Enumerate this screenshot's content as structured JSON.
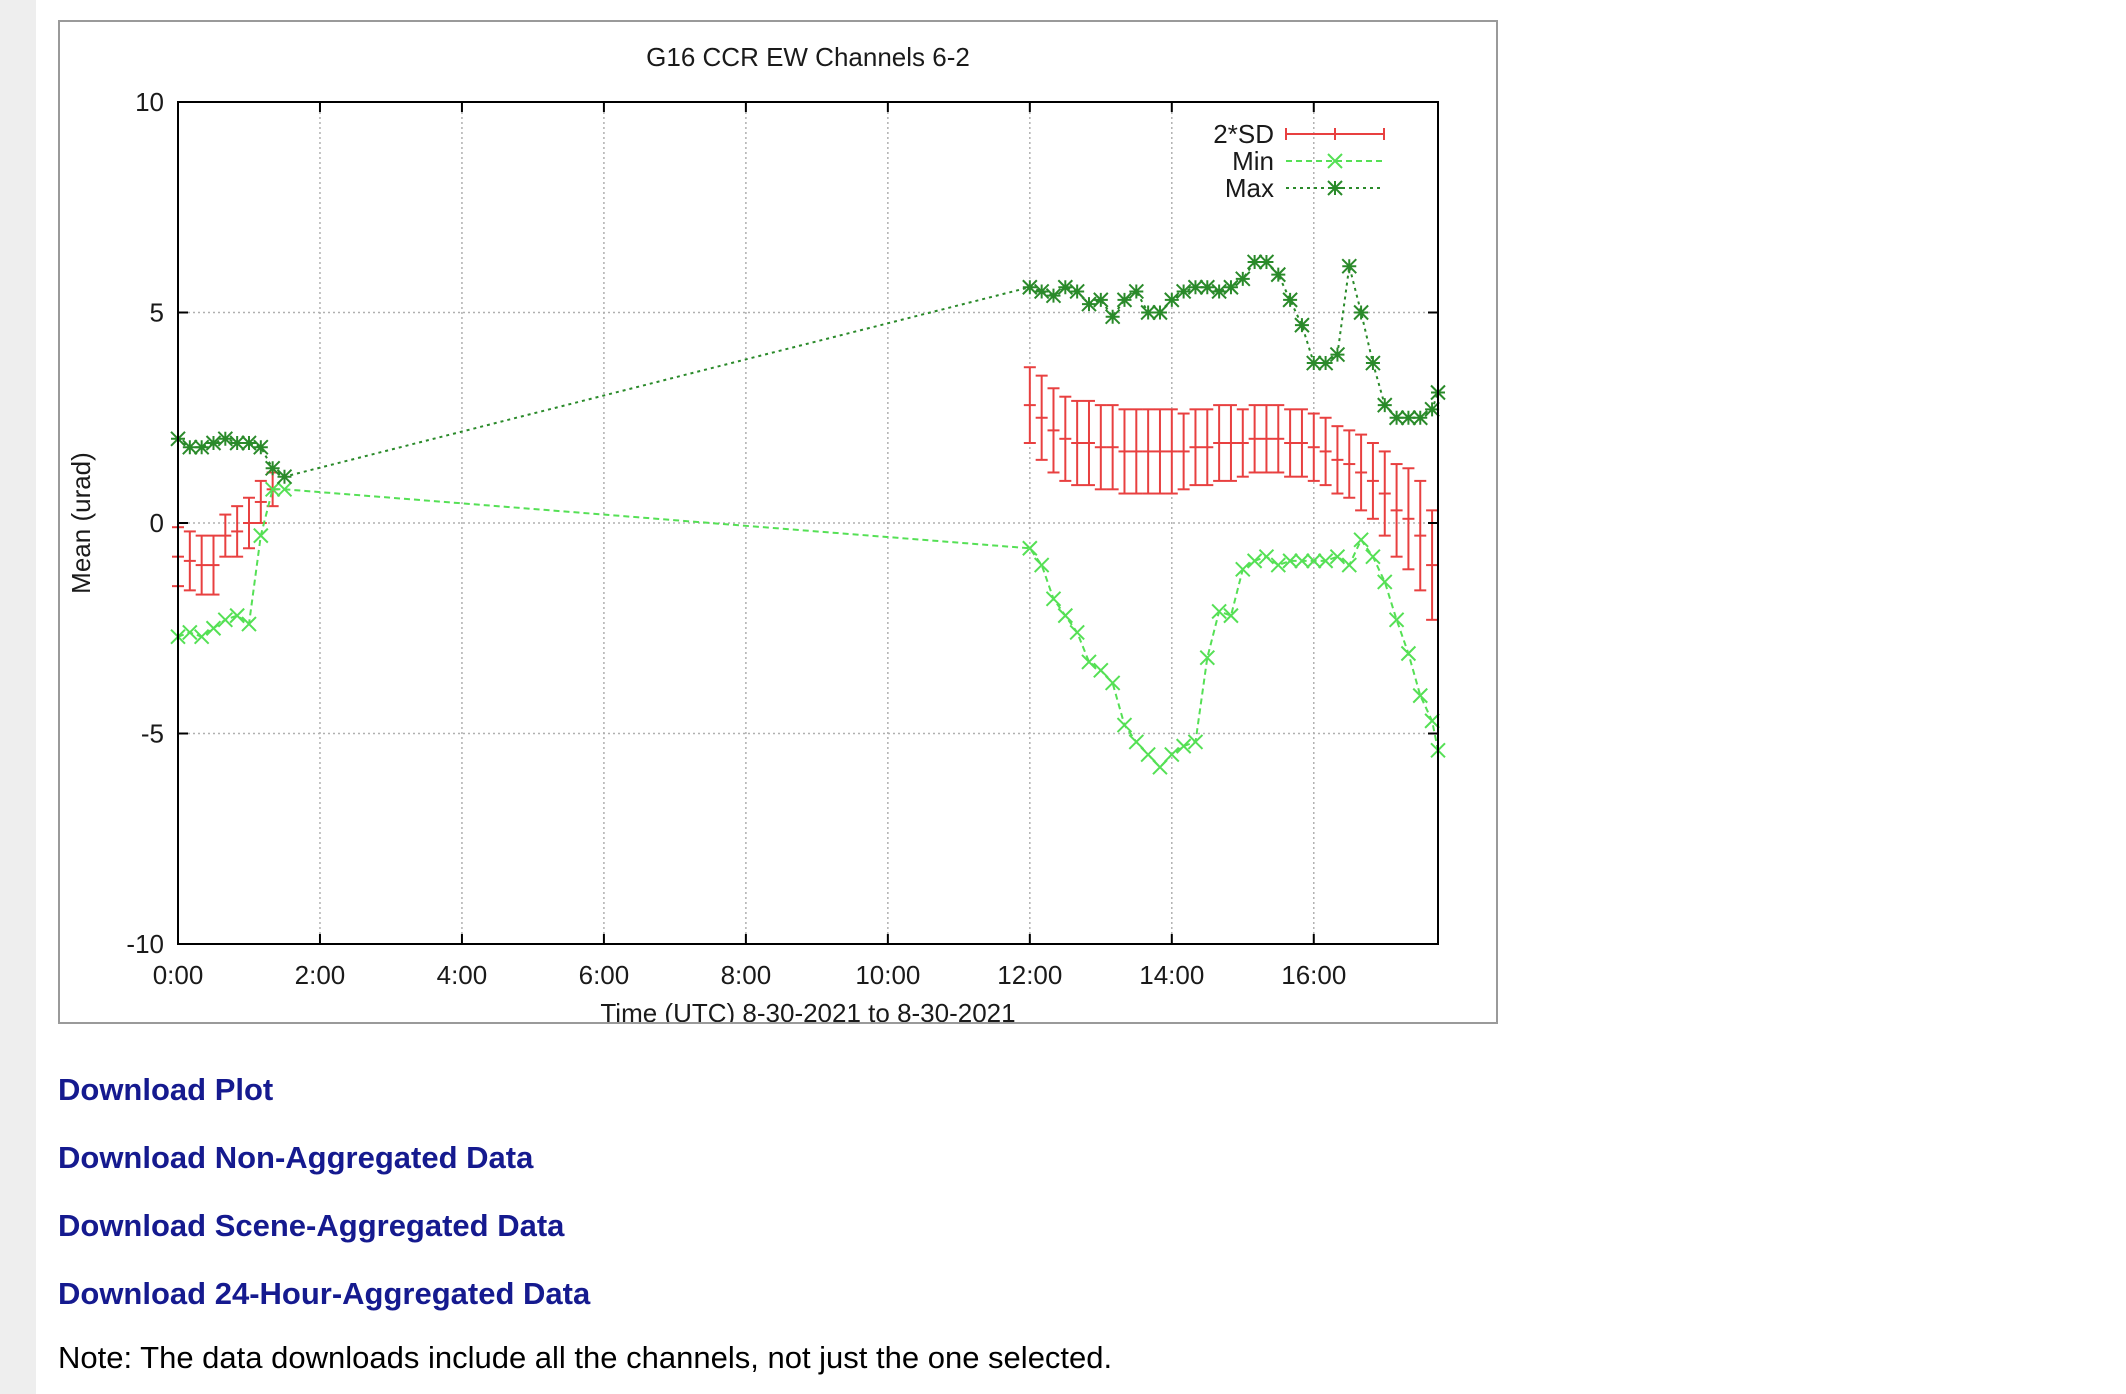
{
  "links": {
    "download_plot": "Download Plot",
    "download_non_aggregated": "Download Non-Aggregated Data",
    "download_scene_aggregated": "Download Scene-Aggregated Data",
    "download_24hour_aggregated": "Download 24-Hour-Aggregated Data"
  },
  "note": "Note: The data downloads include all the channels, not just the one selected.",
  "colors": {
    "link": "#151a8f",
    "sd": "#e84040",
    "min": "#55e055",
    "max": "#2a8a2a"
  },
  "chart_data": {
    "type": "line",
    "title": "G16 CCR EW Channels 6-2",
    "xlabel": "Time (UTC) 8-30-2021 to 8-30-2021",
    "ylabel": "Mean (urad)",
    "xlim": [
      "0:00",
      "17:45"
    ],
    "ylim": [
      -10,
      10
    ],
    "x_ticks": [
      "0:00",
      "2:00",
      "4:00",
      "6:00",
      "8:00",
      "10:00",
      "12:00",
      "14:00",
      "16:00"
    ],
    "y_ticks": [
      "-10",
      "-5",
      "0",
      "5",
      "10"
    ],
    "grid": true,
    "legend_position": "top-right",
    "series": [
      {
        "name": "2*SD",
        "style": "errorbars",
        "x": [
          "0:00",
          "0:10",
          "0:20",
          "0:30",
          "0:40",
          "0:50",
          "1:00",
          "1:10",
          "1:20",
          "12:00",
          "12:10",
          "12:20",
          "12:30",
          "12:40",
          "12:50",
          "13:00",
          "13:10",
          "13:20",
          "13:30",
          "13:40",
          "13:50",
          "14:00",
          "14:10",
          "14:20",
          "14:30",
          "14:40",
          "14:50",
          "15:00",
          "15:10",
          "15:20",
          "15:30",
          "15:40",
          "15:50",
          "16:00",
          "16:10",
          "16:20",
          "16:30",
          "16:40",
          "16:50",
          "17:00",
          "17:10",
          "17:20",
          "17:30",
          "17:40"
        ],
        "mean": [
          -0.8,
          -0.9,
          -1.0,
          -1.0,
          -0.3,
          -0.2,
          0.0,
          0.5,
          0.8,
          2.8,
          2.5,
          2.2,
          2.0,
          1.9,
          1.9,
          1.8,
          1.8,
          1.7,
          1.7,
          1.7,
          1.7,
          1.7,
          1.7,
          1.8,
          1.8,
          1.9,
          1.9,
          1.9,
          2.0,
          2.0,
          2.0,
          1.9,
          1.9,
          1.8,
          1.7,
          1.5,
          1.4,
          1.2,
          1.0,
          0.7,
          0.3,
          0.1,
          -0.3,
          -1.0
        ],
        "sd2": [
          0.7,
          0.7,
          0.7,
          0.7,
          0.5,
          0.6,
          0.6,
          0.5,
          0.4,
          0.9,
          1.0,
          1.0,
          1.0,
          1.0,
          1.0,
          1.0,
          1.0,
          1.0,
          1.0,
          1.0,
          1.0,
          1.0,
          0.9,
          0.9,
          0.9,
          0.9,
          0.9,
          0.8,
          0.8,
          0.8,
          0.8,
          0.8,
          0.8,
          0.8,
          0.8,
          0.8,
          0.8,
          0.9,
          0.9,
          1.0,
          1.1,
          1.2,
          1.3,
          1.3
        ]
      },
      {
        "name": "Min",
        "style": "dashed-x",
        "x": [
          "0:00",
          "0:10",
          "0:20",
          "0:30",
          "0:40",
          "0:50",
          "1:00",
          "1:10",
          "1:20",
          "1:30",
          "12:00",
          "12:10",
          "12:20",
          "12:30",
          "12:40",
          "12:50",
          "13:00",
          "13:10",
          "13:20",
          "13:30",
          "13:40",
          "13:50",
          "14:00",
          "14:10",
          "14:20",
          "14:30",
          "14:40",
          "14:50",
          "15:00",
          "15:10",
          "15:20",
          "15:30",
          "15:40",
          "15:50",
          "16:00",
          "16:10",
          "16:20",
          "16:30",
          "16:40",
          "16:50",
          "17:00",
          "17:10",
          "17:20",
          "17:30",
          "17:40",
          "17:45"
        ],
        "values": [
          -2.7,
          -2.6,
          -2.7,
          -2.5,
          -2.3,
          -2.2,
          -2.4,
          -0.3,
          0.8,
          0.8,
          -0.6,
          -1.0,
          -1.8,
          -2.2,
          -2.6,
          -3.3,
          -3.5,
          -3.8,
          -4.8,
          -5.2,
          -5.5,
          -5.8,
          -5.5,
          -5.3,
          -5.2,
          -3.2,
          -2.1,
          -2.2,
          -1.1,
          -0.9,
          -0.8,
          -1.0,
          -0.9,
          -0.9,
          -0.9,
          -0.9,
          -0.8,
          -1.0,
          -0.4,
          -0.8,
          -1.4,
          -2.3,
          -3.1,
          -4.1,
          -4.7,
          -5.4
        ]
      },
      {
        "name": "Max",
        "style": "dashed-star",
        "x": [
          "0:00",
          "0:10",
          "0:20",
          "0:30",
          "0:40",
          "0:50",
          "1:00",
          "1:10",
          "1:20",
          "1:30",
          "12:00",
          "12:10",
          "12:20",
          "12:30",
          "12:40",
          "12:50",
          "13:00",
          "13:10",
          "13:20",
          "13:30",
          "13:40",
          "13:50",
          "14:00",
          "14:10",
          "14:20",
          "14:30",
          "14:40",
          "14:50",
          "15:00",
          "15:10",
          "15:20",
          "15:30",
          "15:40",
          "15:50",
          "16:00",
          "16:10",
          "16:20",
          "16:30",
          "16:40",
          "16:50",
          "17:00",
          "17:10",
          "17:20",
          "17:30",
          "17:40",
          "17:45"
        ],
        "values": [
          2.0,
          1.8,
          1.8,
          1.9,
          2.0,
          1.9,
          1.9,
          1.8,
          1.3,
          1.1,
          5.6,
          5.5,
          5.4,
          5.6,
          5.5,
          5.2,
          5.3,
          4.9,
          5.3,
          5.5,
          5.0,
          5.0,
          5.3,
          5.5,
          5.6,
          5.6,
          5.5,
          5.6,
          5.8,
          6.2,
          6.2,
          5.9,
          5.3,
          4.7,
          3.8,
          3.8,
          4.0,
          6.1,
          5.0,
          3.8,
          2.8,
          2.5,
          2.5,
          2.5,
          2.7,
          3.1
        ]
      }
    ]
  }
}
